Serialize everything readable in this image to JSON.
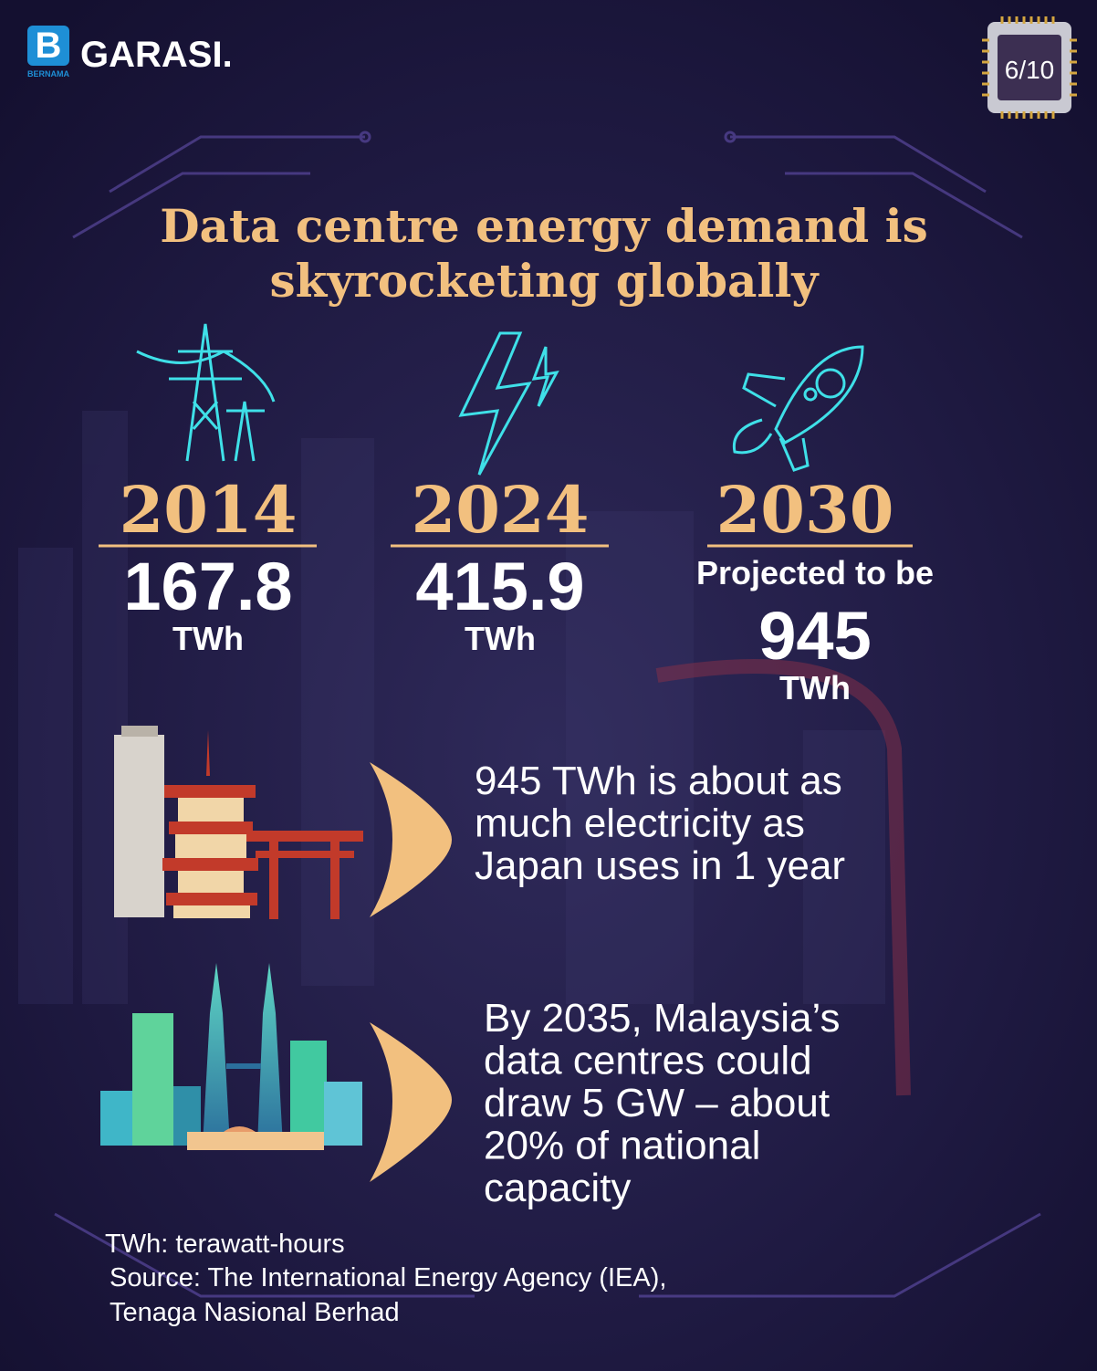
{
  "brand": {
    "mark": "BERNAMA",
    "name": "GARASI."
  },
  "page_indicator": "6/10",
  "title": [
    "Data centre energy demand is",
    "skyrocketing globally"
  ],
  "stats": [
    {
      "year": "2014",
      "value": "167.8",
      "unit": "TWh"
    },
    {
      "year": "2024",
      "value": "415.9",
      "unit": "TWh"
    },
    {
      "year": "2030",
      "prefix": "Projected to be",
      "value": "945",
      "unit": "TWh"
    }
  ],
  "comparisons": [
    {
      "lines": [
        "945 TWh is about as",
        "much electricity as",
        "Japan uses in 1 year"
      ]
    },
    {
      "lines": [
        "By 2035, Malaysia’s",
        "data centres could",
        "draw 5 GW – about",
        "20% of national",
        "capacity"
      ]
    }
  ],
  "footnote": [
    "TWh:  terawatt-hours",
    "Source: The International Energy Agency (IEA),",
    "Tenaga Nasional Berhad"
  ]
}
